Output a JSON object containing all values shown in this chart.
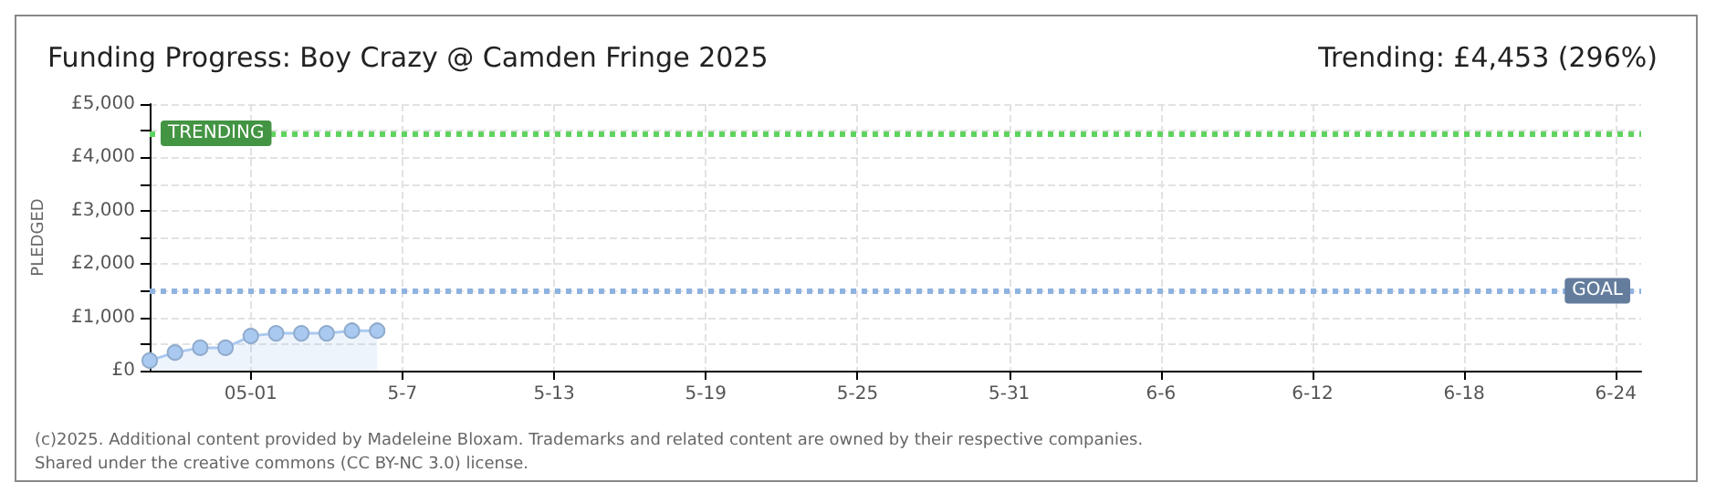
{
  "chart_data": {
    "type": "area",
    "title": "Funding Progress: Boy Crazy @ Camden Fringe 2025",
    "subtitle": "Trending: £4,453 (296%)",
    "ylabel": "PLEDGED",
    "x": [
      "--04-27",
      "--04-28",
      "--04-29",
      "--04-30",
      "--05-01",
      "--05-02",
      "--05-03",
      "--05-04",
      "--05-05",
      "--05-06"
    ],
    "series": [
      {
        "color": "#a9c9f0",
        "values": [
          190,
          340,
          430,
          430,
          650,
          700,
          700,
          700,
          750,
          750
        ]
      }
    ],
    "marker": "circle",
    "grid": true,
    "xlim": [
      "--04-27",
      "--06-25"
    ],
    "xticks": [
      {
        "value": "--05-01",
        "label": "05-01"
      },
      {
        "value": "--05-07",
        "label": "5-7"
      },
      {
        "value": "--05-13",
        "label": "5-13"
      },
      {
        "value": "--05-19",
        "label": "5-19"
      },
      {
        "value": "--05-25",
        "label": "5-25"
      },
      {
        "value": "--05-31",
        "label": "5-31"
      },
      {
        "value": "--06-06",
        "label": "6-6"
      },
      {
        "value": "--06-12",
        "label": "6-12"
      },
      {
        "value": "--06-18",
        "label": "6-18"
      },
      {
        "value": "--06-24",
        "label": "6-24"
      }
    ],
    "ylim": [
      0,
      5000
    ],
    "yticks": [
      {
        "value": 0,
        "label": "£0"
      },
      {
        "value": 500,
        "label": null
      },
      {
        "value": 1000,
        "label": "£1,000"
      },
      {
        "value": 1500,
        "label": null
      },
      {
        "value": 2000,
        "label": "£2,000"
      },
      {
        "value": 2500,
        "label": null
      },
      {
        "value": 3000,
        "label": "£3,000"
      },
      {
        "value": 3500,
        "label": null
      },
      {
        "value": 4000,
        "label": "£4,000"
      },
      {
        "value": 4500,
        "label": null
      },
      {
        "value": 5000,
        "label": "£5,000"
      }
    ],
    "ref_lines": [
      {
        "axis": "y",
        "value": 4453,
        "label": "TRENDING",
        "color": "#5fd35f",
        "line_style": "dotted"
      },
      {
        "axis": "y",
        "value": 1500,
        "label": "GOAL",
        "color": "#8fb3e0",
        "line_style": "dotted"
      }
    ],
    "annotations": [
      "(c)2025. Additional content provided by Madeleine Bloxam. Trademarks and related content are owned by their respective companies.",
      "Shared under the creative commons (CC BY-NC 3.0) license."
    ]
  }
}
